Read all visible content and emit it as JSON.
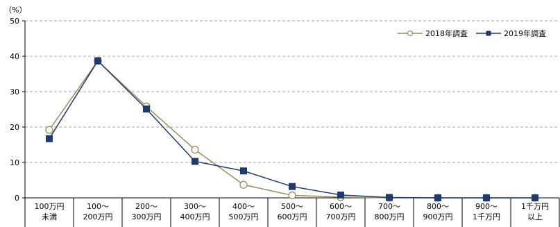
{
  "chart_data": {
    "type": "line",
    "y_unit": "（%）",
    "ylim": [
      0,
      50
    ],
    "yticks": [
      0,
      10,
      20,
      30,
      40,
      50
    ],
    "grid": true,
    "legend_position": "top-right",
    "categories": [
      [
        "100万円",
        "未満"
      ],
      [
        "100～",
        "200万円"
      ],
      [
        "200～",
        "300万円"
      ],
      [
        "300～",
        "400万円"
      ],
      [
        "400～",
        "500万円"
      ],
      [
        "500～",
        "600万円"
      ],
      [
        "600～",
        "700万円"
      ],
      [
        "700～",
        "800万円"
      ],
      [
        "800～",
        "900万円"
      ],
      [
        "900～",
        "1千万円"
      ],
      [
        "1千万円",
        "以上"
      ]
    ],
    "series": [
      {
        "name": "2018年調査",
        "color": "#9c8c5c",
        "marker": "open-circle",
        "values": [
          19.2,
          38.7,
          25.8,
          13.6,
          3.7,
          0.7,
          0.2,
          0.0,
          0.0,
          0.0,
          0.0
        ]
      },
      {
        "name": "2019年調査",
        "color": "#1f3a6e",
        "marker": "filled-square",
        "values": [
          16.7,
          38.7,
          25.1,
          10.3,
          7.6,
          3.2,
          0.8,
          0.1,
          0.0,
          0.0,
          0.0
        ]
      }
    ]
  }
}
